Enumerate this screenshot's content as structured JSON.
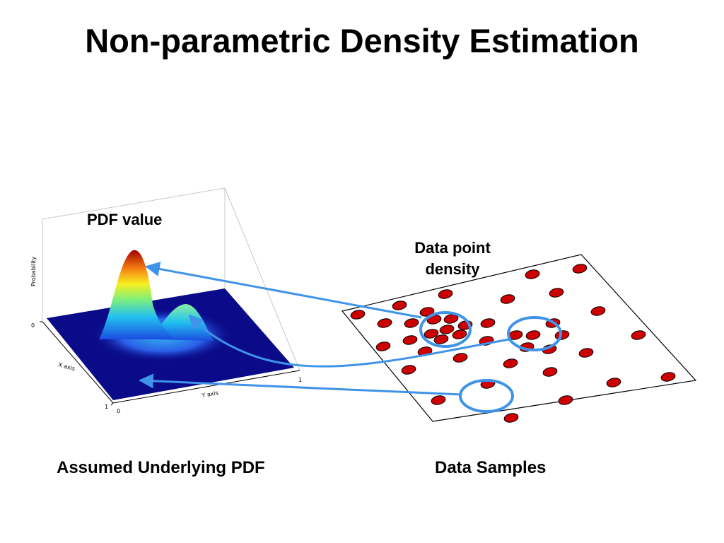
{
  "title": "Non-parametric Density Estimation",
  "plot3d": {
    "axis_z_label": "Probability",
    "axis_x_label": "X axis",
    "axis_y_label": "Y axis",
    "tick_zero_z": "0",
    "tick_zero_x": "0",
    "tick_one_x": "1",
    "tick_one_y": "1"
  },
  "labels": {
    "pdf_value": "PDF value",
    "density_line1": "Data point",
    "density_line2": "density"
  },
  "captions": {
    "left": "Assumed Underlying PDF",
    "right": "Data Samples"
  },
  "colors": {
    "plane": "#0b0b8a",
    "sample_fill": "#cc0000",
    "arrow": "#3f93e8"
  }
}
